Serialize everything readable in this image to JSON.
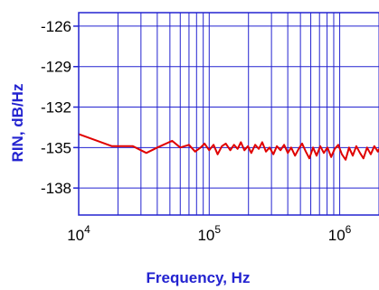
{
  "chart_data": {
    "type": "line",
    "title": "",
    "xlabel": "Frequency, Hz",
    "ylabel": "RIN, dB/Hz",
    "xscale": "log",
    "xlim": [
      10000,
      2000000
    ],
    "ylim": [
      -140,
      -125
    ],
    "x_ticks": [
      {
        "value": 10000,
        "base": "10",
        "exp": "4"
      },
      {
        "value": 100000,
        "base": "10",
        "exp": "5"
      },
      {
        "value": 1000000,
        "base": "10",
        "exp": "6"
      }
    ],
    "y_ticks": [
      {
        "value": -126,
        "label": "-126"
      },
      {
        "value": -129,
        "label": "-129"
      },
      {
        "value": -132,
        "label": "-132"
      },
      {
        "value": -135,
        "label": "-135"
      },
      {
        "value": -138,
        "label": "-138"
      }
    ],
    "grid": true,
    "colors": {
      "grid": "#2323d0",
      "frame": "#2323d0",
      "series": "#e00000",
      "axis_title": "#2323d0"
    },
    "series": [
      {
        "values": [
          [
            10000,
            -134.0
          ],
          [
            18000,
            -134.9
          ],
          [
            26000,
            -134.9
          ],
          [
            33000,
            -135.4
          ],
          [
            40000,
            -135.0
          ],
          [
            52000,
            -134.5
          ],
          [
            60000,
            -135.0
          ],
          [
            70000,
            -134.8
          ],
          [
            78000,
            -135.3
          ],
          [
            86000,
            -135.0
          ],
          [
            92000,
            -134.7
          ],
          [
            100000,
            -135.2
          ],
          [
            108000,
            -134.8
          ],
          [
            116000,
            -135.5
          ],
          [
            125000,
            -134.9
          ],
          [
            134000,
            -134.7
          ],
          [
            145000,
            -135.2
          ],
          [
            155000,
            -134.8
          ],
          [
            165000,
            -135.1
          ],
          [
            175000,
            -134.6
          ],
          [
            186000,
            -135.2
          ],
          [
            198000,
            -134.9
          ],
          [
            210000,
            -135.4
          ],
          [
            225000,
            -134.8
          ],
          [
            240000,
            -135.1
          ],
          [
            255000,
            -134.6
          ],
          [
            272000,
            -135.3
          ],
          [
            290000,
            -135.0
          ],
          [
            310000,
            -135.5
          ],
          [
            330000,
            -134.9
          ],
          [
            352000,
            -135.2
          ],
          [
            375000,
            -134.8
          ],
          [
            400000,
            -135.4
          ],
          [
            425000,
            -135.0
          ],
          [
            455000,
            -135.6
          ],
          [
            485000,
            -135.1
          ],
          [
            515000,
            -134.7
          ],
          [
            550000,
            -135.3
          ],
          [
            585000,
            -135.8
          ],
          [
            625000,
            -135.0
          ],
          [
            665000,
            -135.6
          ],
          [
            710000,
            -134.9
          ],
          [
            755000,
            -135.4
          ],
          [
            805000,
            -135.0
          ],
          [
            860000,
            -135.7
          ],
          [
            915000,
            -135.1
          ],
          [
            975000,
            -134.8
          ],
          [
            1040000,
            -135.5
          ],
          [
            1110000,
            -135.9
          ],
          [
            1180000,
            -135.0
          ],
          [
            1260000,
            -135.6
          ],
          [
            1340000,
            -134.9
          ],
          [
            1430000,
            -135.4
          ],
          [
            1520000,
            -135.8
          ],
          [
            1620000,
            -135.0
          ],
          [
            1730000,
            -135.5
          ],
          [
            1840000,
            -134.9
          ],
          [
            1960000,
            -135.3
          ],
          [
            2000000,
            -135.1
          ]
        ]
      }
    ]
  }
}
